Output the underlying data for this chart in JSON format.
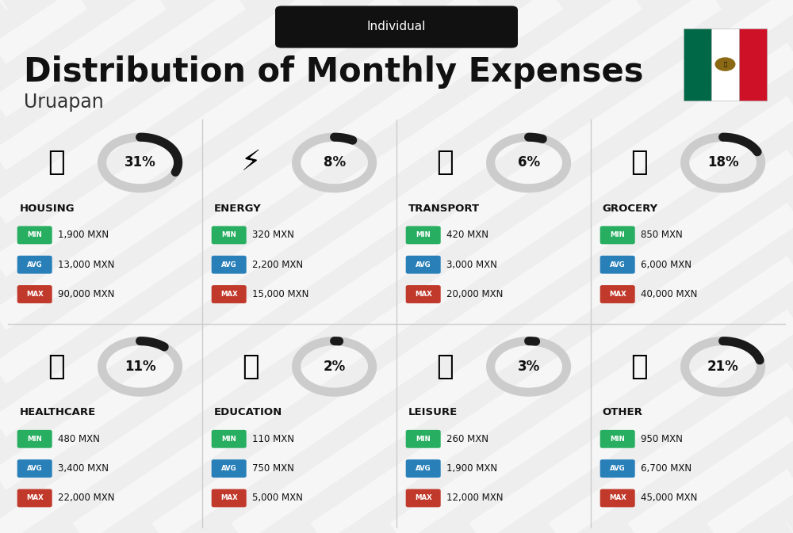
{
  "title": "Distribution of Monthly Expenses",
  "subtitle": "Individual",
  "city": "Uruapan",
  "background_color": "#eeeeee",
  "categories": [
    {
      "name": "HOUSING",
      "pct": 31,
      "min_val": "1,900 MXN",
      "avg_val": "13,000 MXN",
      "max_val": "90,000 MXN",
      "row": 0,
      "col": 0
    },
    {
      "name": "ENERGY",
      "pct": 8,
      "min_val": "320 MXN",
      "avg_val": "2,200 MXN",
      "max_val": "15,000 MXN",
      "row": 0,
      "col": 1
    },
    {
      "name": "TRANSPORT",
      "pct": 6,
      "min_val": "420 MXN",
      "avg_val": "3,000 MXN",
      "max_val": "20,000 MXN",
      "row": 0,
      "col": 2
    },
    {
      "name": "GROCERY",
      "pct": 18,
      "min_val": "850 MXN",
      "avg_val": "6,000 MXN",
      "max_val": "40,000 MXN",
      "row": 0,
      "col": 3
    },
    {
      "name": "HEALTHCARE",
      "pct": 11,
      "min_val": "480 MXN",
      "avg_val": "3,400 MXN",
      "max_val": "22,000 MXN",
      "row": 1,
      "col": 0
    },
    {
      "name": "EDUCATION",
      "pct": 2,
      "min_val": "110 MXN",
      "avg_val": "750 MXN",
      "max_val": "5,000 MXN",
      "row": 1,
      "col": 1
    },
    {
      "name": "LEISURE",
      "pct": 3,
      "min_val": "260 MXN",
      "avg_val": "1,900 MXN",
      "max_val": "12,000 MXN",
      "row": 1,
      "col": 2
    },
    {
      "name": "OTHER",
      "pct": 21,
      "min_val": "950 MXN",
      "avg_val": "6,700 MXN",
      "max_val": "45,000 MXN",
      "row": 1,
      "col": 3
    }
  ],
  "color_min": "#27ae60",
  "color_avg": "#2980b9",
  "color_max": "#c0392b",
  "arc_color": "#1a1a1a",
  "arc_bg_color": "#cccccc",
  "title_fontsize": 30,
  "subtitle_fontsize": 11,
  "city_fontsize": 17,
  "flag_green": "#006847",
  "flag_white": "#FFFFFF",
  "flag_red": "#CE1126"
}
